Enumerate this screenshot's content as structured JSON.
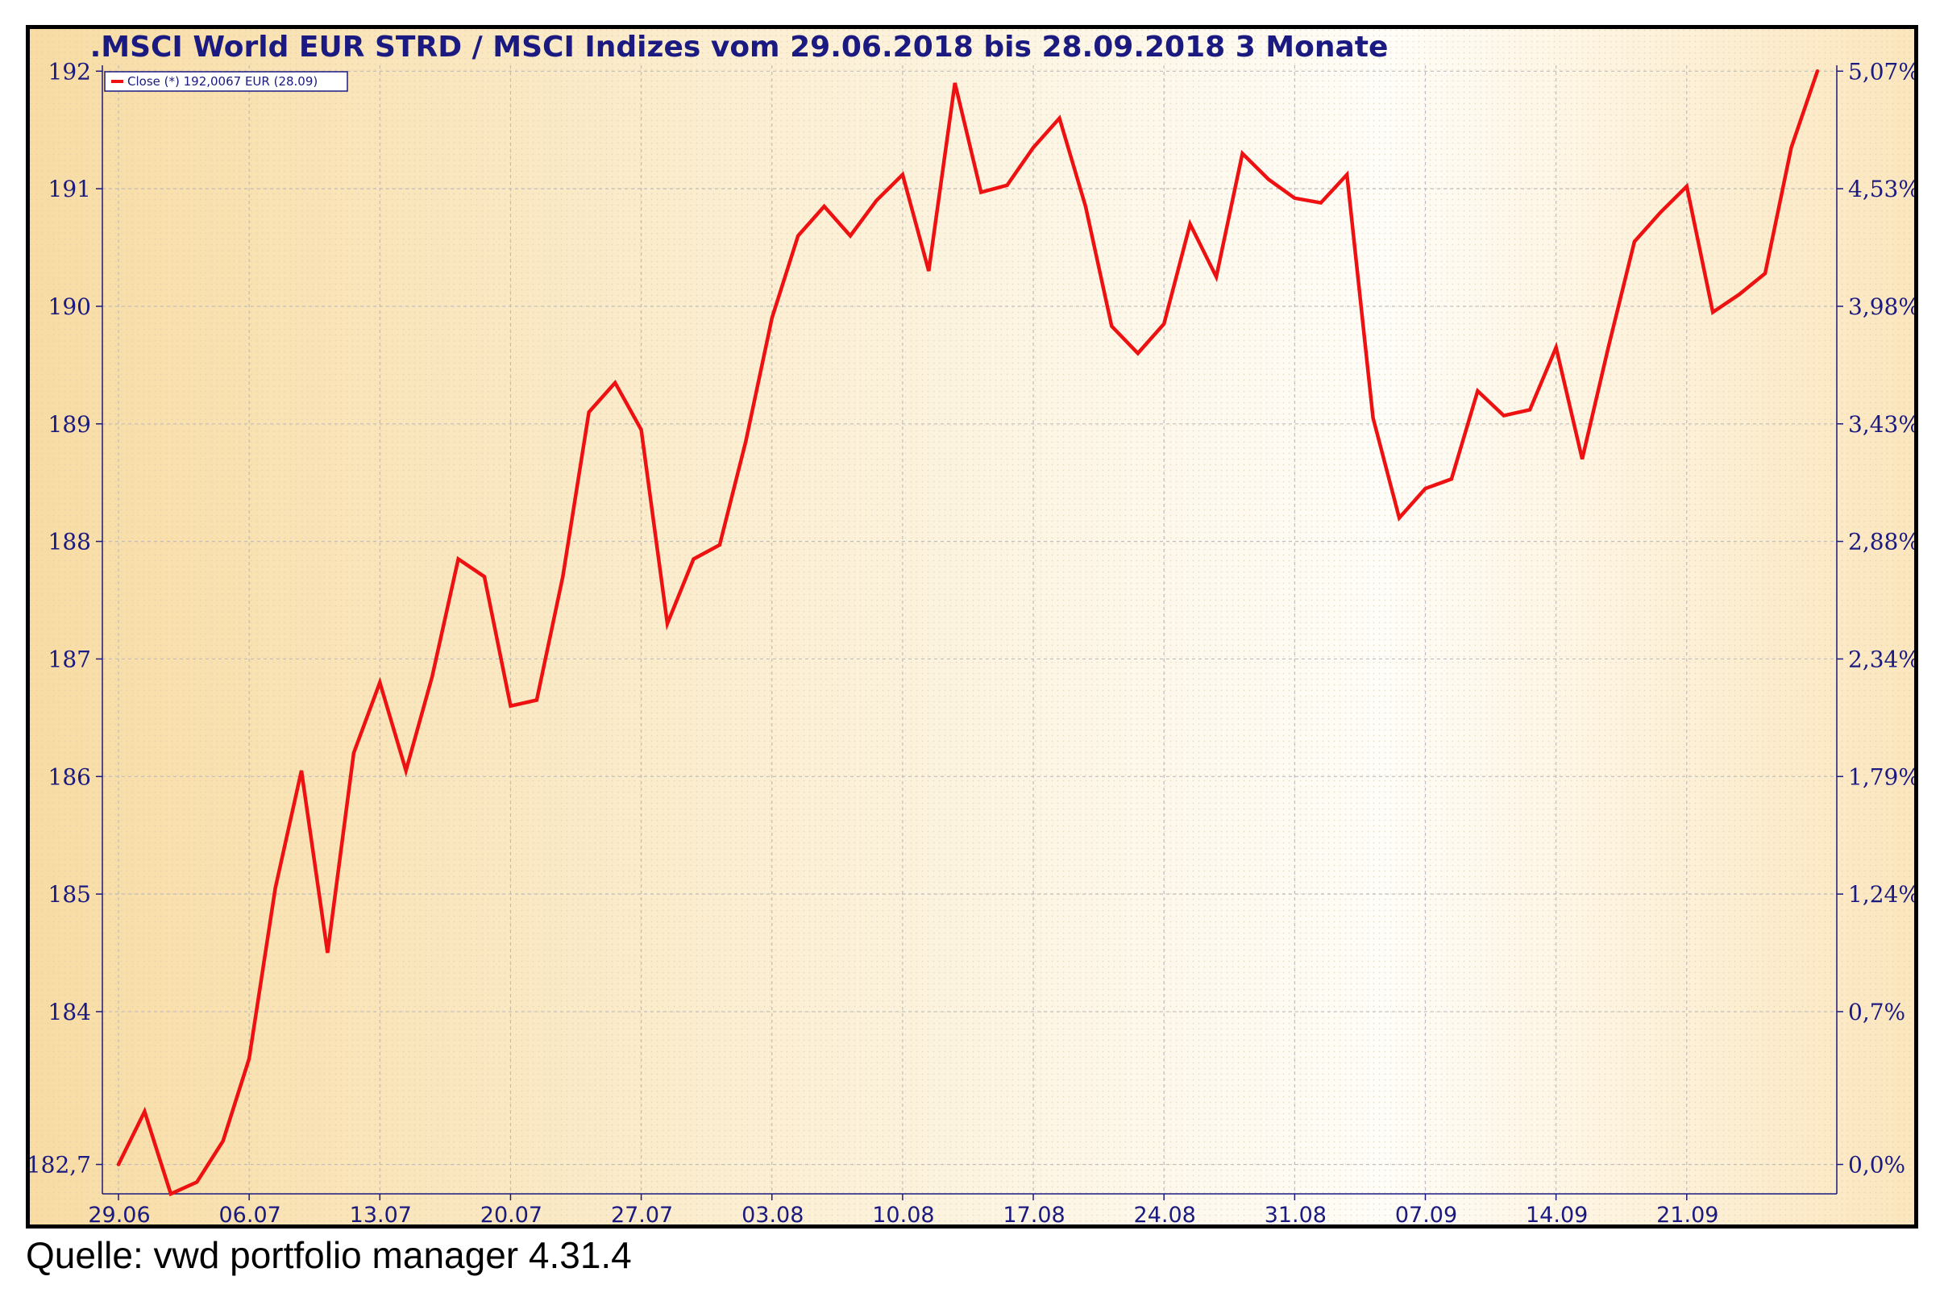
{
  "source": "Quelle: vwd portfolio manager 4.31.4",
  "chart_data": {
    "type": "line",
    "title": ".MSCI World EUR STRD / MSCI Indizes vom 29.06.2018 bis 28.09.2018 3 Monate",
    "legend": {
      "label": "Close (*) 192,0067 EUR (28.09)",
      "placement": "top-left"
    },
    "grid": true,
    "colors": {
      "line": "#ee1111",
      "axis_text": "#1a1a80",
      "grid": "#c8c8c8"
    },
    "y_left": {
      "ticks": [
        182.7,
        184,
        185,
        186,
        187,
        188,
        189,
        190,
        191,
        192
      ],
      "tick_labels": [
        "182,7",
        "184",
        "185",
        "186",
        "187",
        "188",
        "189",
        "190",
        "191",
        "192"
      ],
      "ylim": [
        182.45,
        192.05
      ]
    },
    "y_right": {
      "ticks": [
        182.7,
        184,
        185,
        186,
        187,
        188,
        189,
        190,
        191,
        192
      ],
      "tick_labels": [
        "0,0%",
        "0,7%",
        "1,24%",
        "1,79%",
        "2,34%",
        "2,88%",
        "3,43%",
        "3,98%",
        "4,53%",
        "5,07%"
      ]
    },
    "x": {
      "tick_labels": [
        "29.06",
        "06.07",
        "13.07",
        "20.07",
        "27.07",
        "03.08",
        "10.08",
        "17.08",
        "24.08",
        "31.08",
        "07.09",
        "14.09",
        "21.09"
      ],
      "tick_indices": [
        0,
        5,
        10,
        15,
        20,
        25,
        30,
        35,
        40,
        45,
        50,
        55,
        60
      ],
      "n_points": 66
    },
    "series": [
      {
        "values": [
          182.7,
          183.15,
          182.45,
          182.55,
          182.9,
          183.6,
          185.05,
          186.05,
          184.5,
          186.2,
          186.8,
          186.05,
          186.85,
          187.85,
          187.7,
          186.6,
          186.65,
          187.7,
          189.1,
          189.35,
          188.95,
          187.3,
          187.85,
          187.97,
          188.85,
          189.9,
          190.6,
          190.85,
          190.6,
          190.9,
          191.12,
          190.3,
          191.9,
          190.97,
          191.03,
          191.35,
          191.6,
          190.85,
          189.83,
          189.6,
          189.85,
          190.7,
          190.25,
          191.3,
          191.08,
          190.92,
          190.88,
          191.12,
          189.05,
          188.2,
          188.45,
          188.53,
          189.28,
          189.07,
          189.12,
          189.65,
          188.7,
          189.65,
          190.55,
          190.8,
          191.02,
          189.95,
          190.1,
          190.28,
          191.35,
          192.0
        ]
      }
    ]
  }
}
